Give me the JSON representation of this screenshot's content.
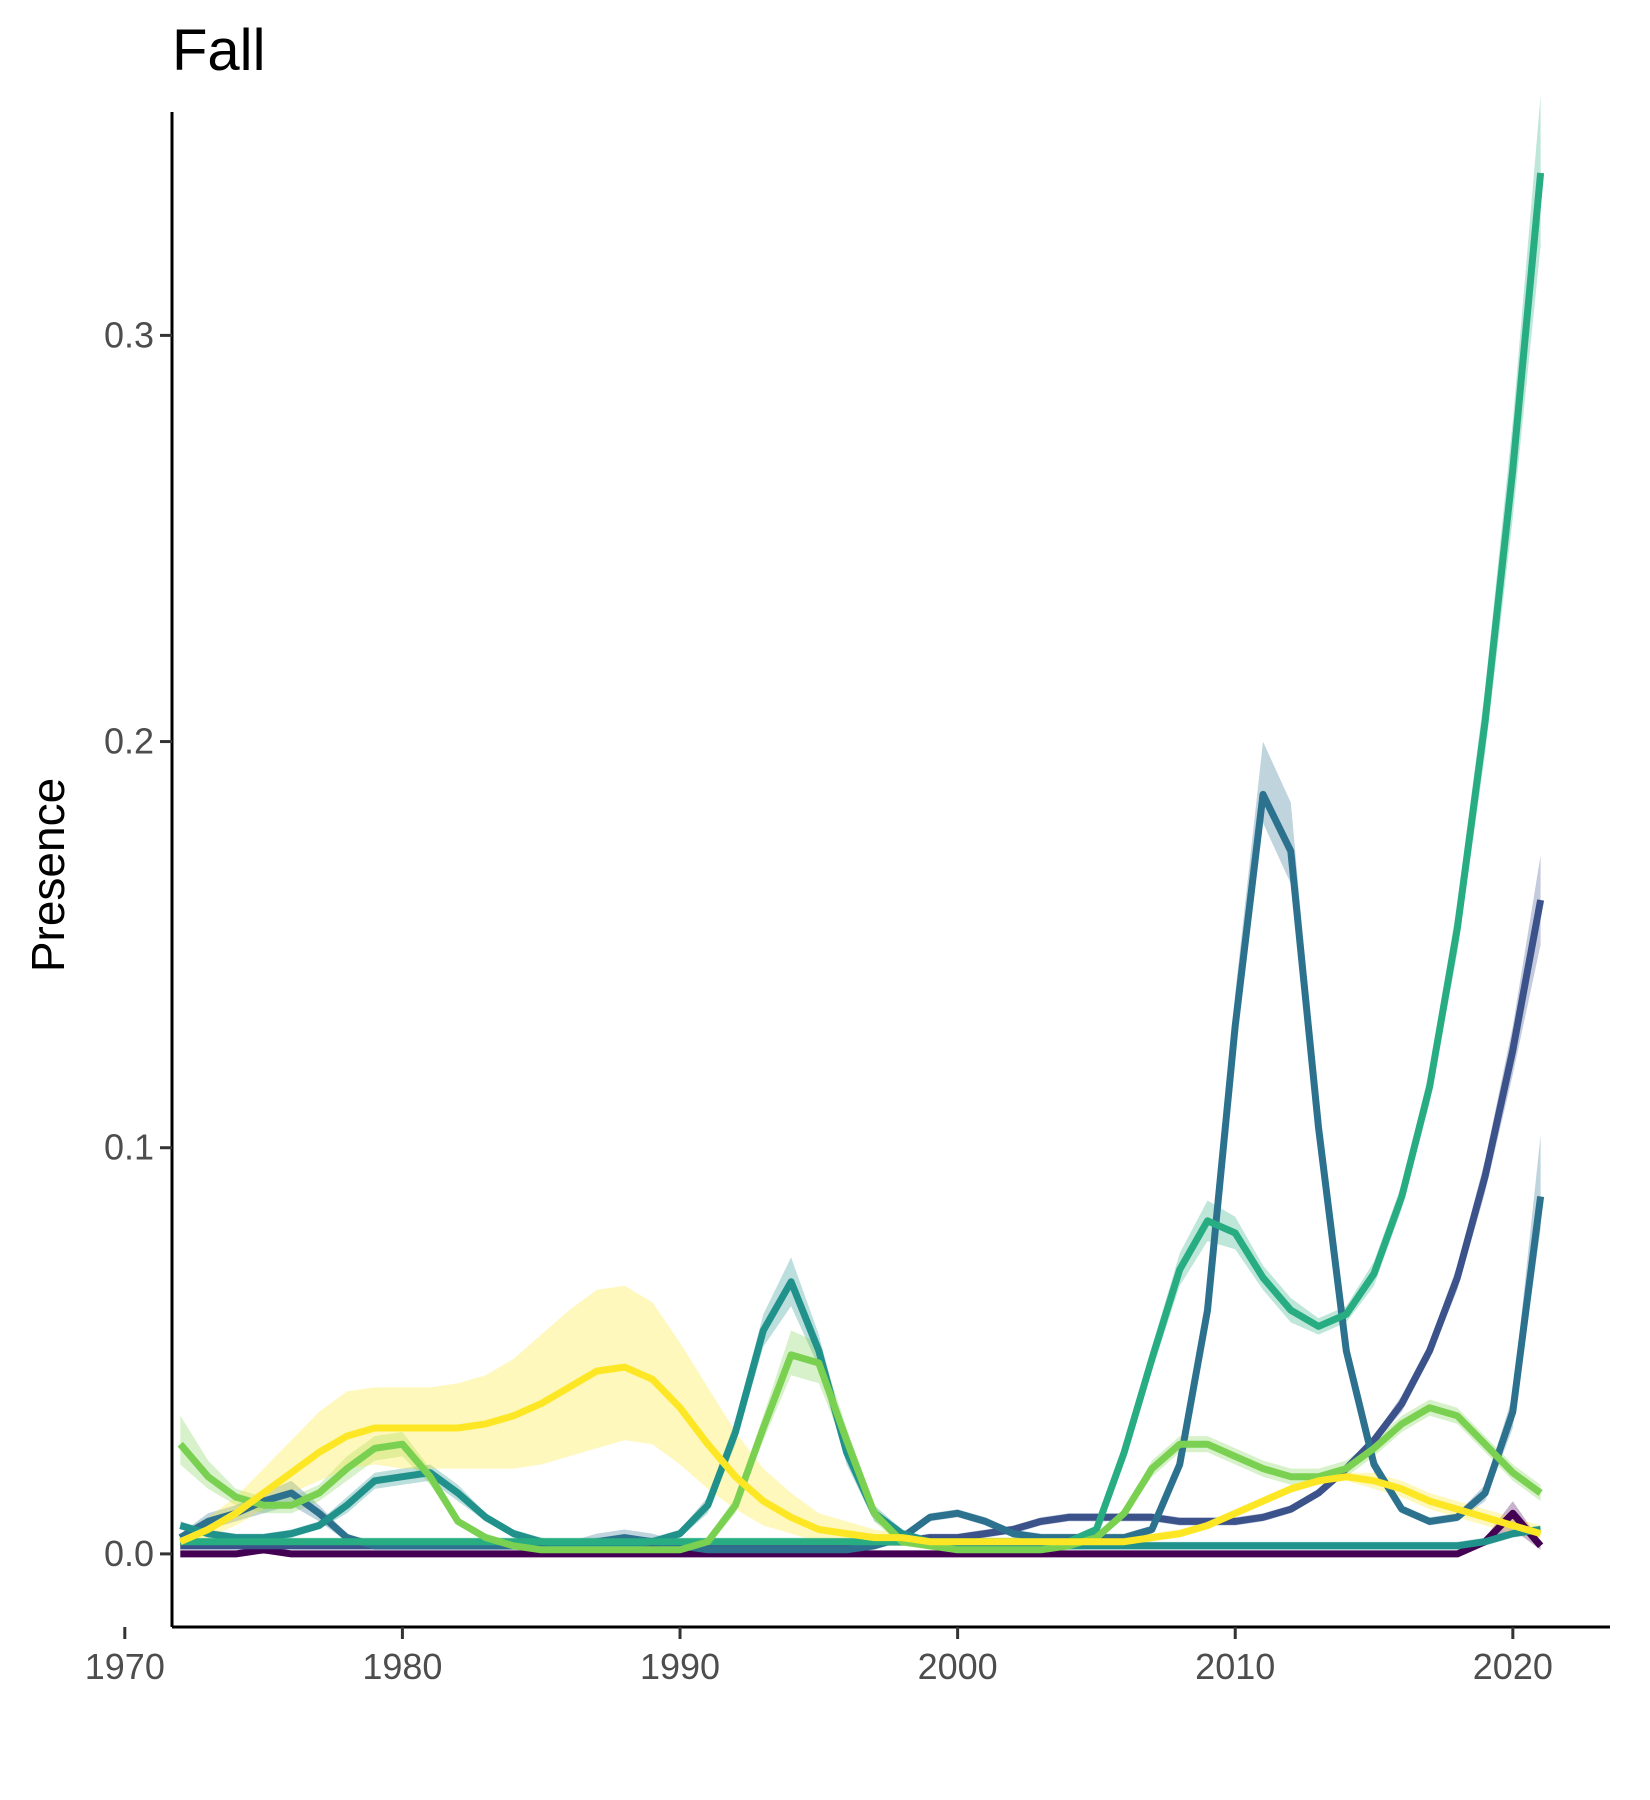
{
  "chart_data": {
    "type": "line",
    "title": "Fall",
    "xlabel": "",
    "ylabel": "Presence",
    "xlim": [
      1971.7,
      2023.5
    ],
    "ylim": [
      -0.018,
      0.355
    ],
    "x_ticks": [
      1970,
      1980,
      1990,
      2000,
      2010,
      2020
    ],
    "x_tick_labels": [
      "1970",
      "1980",
      "1990",
      "2000",
      "2010",
      "2020"
    ],
    "y_ticks": [
      0.0,
      0.1,
      0.2,
      0.3
    ],
    "y_tick_labels": [
      "0.0",
      "0.1",
      "0.2",
      "0.3"
    ],
    "grid": false,
    "legend": "none",
    "x": [
      1972,
      1973,
      1974,
      1975,
      1976,
      1977,
      1978,
      1979,
      1980,
      1981,
      1982,
      1983,
      1984,
      1985,
      1986,
      1987,
      1988,
      1989,
      1990,
      1991,
      1992,
      1993,
      1994,
      1995,
      1996,
      1997,
      1998,
      1999,
      2000,
      2001,
      2002,
      2003,
      2004,
      2005,
      2006,
      2007,
      2008,
      2009,
      2010,
      2011,
      2012,
      2013,
      2014,
      2015,
      2016,
      2017,
      2018,
      2019,
      2020,
      2021
    ],
    "series": [
      {
        "color": "#440154",
        "values": [
          0,
          0,
          0,
          0.001,
          0,
          0,
          0,
          0,
          0,
          0,
          0,
          0,
          0,
          0,
          0,
          0,
          0,
          0,
          0,
          0,
          0,
          0,
          0,
          0,
          0,
          0,
          0,
          0,
          0,
          0,
          0,
          0,
          0,
          0,
          0,
          0,
          0,
          0,
          0,
          0,
          0,
          0,
          0,
          0,
          0,
          0,
          0,
          0.003,
          0.01,
          0.002
        ],
        "lower": [
          0,
          0,
          0,
          0,
          0,
          0,
          0,
          0,
          0,
          0,
          0,
          0,
          0,
          0,
          0,
          0,
          0,
          0,
          0,
          0,
          0,
          0,
          0,
          0,
          0,
          0,
          0,
          0,
          0,
          0,
          0,
          0,
          0,
          0,
          0,
          0,
          0,
          0,
          0,
          0,
          0,
          0,
          0,
          0,
          0,
          0,
          0,
          0.002,
          0.006,
          0.001
        ],
        "upper": [
          0,
          0,
          0,
          0.001,
          0,
          0,
          0,
          0,
          0,
          0,
          0,
          0,
          0,
          0,
          0,
          0,
          0,
          0,
          0,
          0,
          0,
          0,
          0,
          0,
          0,
          0,
          0,
          0,
          0,
          0,
          0,
          0,
          0,
          0,
          0,
          0,
          0,
          0,
          0,
          0,
          0,
          0,
          0,
          0,
          0,
          0,
          0,
          0.004,
          0.013,
          0.003
        ]
      },
      {
        "color": "#3b528b",
        "values": [
          0.002,
          0.002,
          0.002,
          0.002,
          0.002,
          0.002,
          0.002,
          0.002,
          0.002,
          0.002,
          0.002,
          0.002,
          0.002,
          0.002,
          0.002,
          0.002,
          0.002,
          0.002,
          0.002,
          0.002,
          0.002,
          0.002,
          0.002,
          0.002,
          0.002,
          0.003,
          0.003,
          0.004,
          0.004,
          0.005,
          0.006,
          0.008,
          0.009,
          0.009,
          0.009,
          0.009,
          0.008,
          0.008,
          0.008,
          0.009,
          0.011,
          0.015,
          0.021,
          0.028,
          0.037,
          0.05,
          0.068,
          0.093,
          0.124,
          0.161
        ],
        "lower": [
          0.001,
          0.001,
          0.001,
          0.001,
          0.001,
          0.001,
          0.001,
          0.001,
          0.001,
          0.001,
          0.001,
          0.001,
          0.001,
          0.001,
          0.001,
          0.001,
          0.001,
          0.001,
          0.001,
          0.001,
          0.001,
          0.001,
          0.001,
          0.001,
          0.001,
          0.002,
          0.002,
          0.003,
          0.003,
          0.004,
          0.005,
          0.007,
          0.008,
          0.008,
          0.008,
          0.008,
          0.007,
          0.007,
          0.007,
          0.008,
          0.01,
          0.014,
          0.02,
          0.027,
          0.035,
          0.048,
          0.065,
          0.089,
          0.118,
          0.15
        ],
        "upper": [
          0.003,
          0.003,
          0.003,
          0.003,
          0.003,
          0.003,
          0.003,
          0.003,
          0.003,
          0.003,
          0.003,
          0.003,
          0.003,
          0.003,
          0.003,
          0.003,
          0.003,
          0.003,
          0.003,
          0.003,
          0.003,
          0.003,
          0.003,
          0.003,
          0.003,
          0.004,
          0.004,
          0.005,
          0.005,
          0.006,
          0.007,
          0.009,
          0.01,
          0.01,
          0.01,
          0.01,
          0.009,
          0.009,
          0.009,
          0.01,
          0.012,
          0.016,
          0.022,
          0.029,
          0.039,
          0.052,
          0.071,
          0.097,
          0.13,
          0.172
        ]
      },
      {
        "color": "#2c728e",
        "values": [
          0.004,
          0.008,
          0.01,
          0.013,
          0.015,
          0.01,
          0.004,
          0.002,
          0.002,
          0.002,
          0.002,
          0.002,
          0.002,
          0.002,
          0.002,
          0.003,
          0.004,
          0.003,
          0.002,
          0.001,
          0.001,
          0.001,
          0.001,
          0.001,
          0.001,
          0.002,
          0.004,
          0.009,
          0.01,
          0.008,
          0.005,
          0.004,
          0.004,
          0.004,
          0.004,
          0.006,
          0.022,
          0.06,
          0.13,
          0.187,
          0.173,
          0.105,
          0.05,
          0.022,
          0.011,
          0.008,
          0.009,
          0.015,
          0.035,
          0.088
        ],
        "lower": [
          0.003,
          0.006,
          0.008,
          0.01,
          0.012,
          0.008,
          0.003,
          0.001,
          0.001,
          0.001,
          0.001,
          0.001,
          0.001,
          0.001,
          0.001,
          0.002,
          0.002,
          0.002,
          0.001,
          0,
          0,
          0,
          0,
          0,
          0,
          0.001,
          0.003,
          0.008,
          0.009,
          0.007,
          0.004,
          0.003,
          0.003,
          0.003,
          0.003,
          0.005,
          0.02,
          0.056,
          0.123,
          0.18,
          0.165,
          0.1,
          0.047,
          0.02,
          0.01,
          0.007,
          0.008,
          0.013,
          0.031,
          0.08
        ],
        "upper": [
          0.005,
          0.01,
          0.012,
          0.015,
          0.018,
          0.012,
          0.005,
          0.003,
          0.003,
          0.003,
          0.003,
          0.003,
          0.003,
          0.003,
          0.003,
          0.005,
          0.006,
          0.005,
          0.003,
          0.002,
          0.002,
          0.002,
          0.002,
          0.002,
          0.002,
          0.003,
          0.005,
          0.01,
          0.011,
          0.009,
          0.006,
          0.005,
          0.005,
          0.005,
          0.005,
          0.007,
          0.024,
          0.064,
          0.138,
          0.2,
          0.185,
          0.11,
          0.053,
          0.024,
          0.012,
          0.009,
          0.01,
          0.017,
          0.039,
          0.103
        ]
      },
      {
        "color": "#21918c",
        "values": [
          0.007,
          0.005,
          0.004,
          0.004,
          0.005,
          0.007,
          0.012,
          0.018,
          0.019,
          0.02,
          0.015,
          0.009,
          0.005,
          0.003,
          0.002,
          0.002,
          0.002,
          0.003,
          0.005,
          0.012,
          0.03,
          0.055,
          0.067,
          0.05,
          0.025,
          0.01,
          0.005,
          0.003,
          0.002,
          0.002,
          0.002,
          0.002,
          0.002,
          0.002,
          0.002,
          0.002,
          0.002,
          0.002,
          0.002,
          0.002,
          0.002,
          0.002,
          0.002,
          0.002,
          0.002,
          0.002,
          0.002,
          0.003,
          0.005,
          0.006
        ],
        "lower": [
          0.006,
          0.004,
          0.003,
          0.003,
          0.004,
          0.006,
          0.01,
          0.016,
          0.017,
          0.018,
          0.013,
          0.008,
          0.004,
          0.002,
          0.001,
          0.001,
          0.001,
          0.002,
          0.004,
          0.01,
          0.027,
          0.051,
          0.061,
          0.046,
          0.022,
          0.008,
          0.004,
          0.002,
          0.001,
          0.001,
          0.001,
          0.001,
          0.001,
          0.001,
          0.001,
          0.001,
          0.001,
          0.001,
          0.001,
          0.001,
          0.001,
          0.001,
          0.001,
          0.001,
          0.001,
          0.001,
          0.001,
          0.002,
          0.004,
          0.005
        ],
        "upper": [
          0.008,
          0.006,
          0.005,
          0.005,
          0.006,
          0.008,
          0.014,
          0.02,
          0.021,
          0.022,
          0.017,
          0.01,
          0.006,
          0.004,
          0.003,
          0.003,
          0.003,
          0.004,
          0.006,
          0.014,
          0.033,
          0.059,
          0.073,
          0.054,
          0.028,
          0.012,
          0.006,
          0.004,
          0.003,
          0.003,
          0.003,
          0.003,
          0.003,
          0.003,
          0.003,
          0.003,
          0.003,
          0.003,
          0.003,
          0.003,
          0.003,
          0.003,
          0.003,
          0.003,
          0.003,
          0.003,
          0.003,
          0.004,
          0.006,
          0.007
        ]
      },
      {
        "color": "#27ad81",
        "values": [
          0.003,
          0.003,
          0.003,
          0.003,
          0.003,
          0.003,
          0.003,
          0.003,
          0.003,
          0.003,
          0.003,
          0.003,
          0.003,
          0.003,
          0.003,
          0.003,
          0.003,
          0.003,
          0.003,
          0.003,
          0.003,
          0.003,
          0.003,
          0.003,
          0.003,
          0.003,
          0.003,
          0.003,
          0.003,
          0.003,
          0.003,
          0.003,
          0.003,
          0.006,
          0.025,
          0.048,
          0.07,
          0.082,
          0.079,
          0.068,
          0.06,
          0.056,
          0.059,
          0.069,
          0.088,
          0.115,
          0.154,
          0.205,
          0.267,
          0.34
        ],
        "lower": [
          0.002,
          0.002,
          0.002,
          0.002,
          0.002,
          0.002,
          0.002,
          0.002,
          0.002,
          0.002,
          0.002,
          0.002,
          0.002,
          0.002,
          0.002,
          0.002,
          0.002,
          0.002,
          0.002,
          0.002,
          0.002,
          0.002,
          0.002,
          0.002,
          0.002,
          0.002,
          0.002,
          0.002,
          0.002,
          0.002,
          0.002,
          0.002,
          0.002,
          0.005,
          0.023,
          0.045,
          0.066,
          0.077,
          0.075,
          0.065,
          0.057,
          0.054,
          0.057,
          0.066,
          0.085,
          0.111,
          0.148,
          0.197,
          0.255,
          0.322
        ],
        "upper": [
          0.004,
          0.004,
          0.004,
          0.004,
          0.004,
          0.004,
          0.004,
          0.004,
          0.004,
          0.004,
          0.004,
          0.004,
          0.004,
          0.004,
          0.004,
          0.004,
          0.004,
          0.004,
          0.004,
          0.004,
          0.004,
          0.004,
          0.004,
          0.004,
          0.004,
          0.004,
          0.004,
          0.004,
          0.004,
          0.004,
          0.004,
          0.004,
          0.004,
          0.007,
          0.027,
          0.051,
          0.074,
          0.087,
          0.083,
          0.071,
          0.063,
          0.058,
          0.061,
          0.072,
          0.091,
          0.119,
          0.16,
          0.213,
          0.279,
          0.359
        ]
      },
      {
        "color": "#7ad151",
        "values": [
          0.027,
          0.019,
          0.014,
          0.012,
          0.012,
          0.015,
          0.021,
          0.026,
          0.027,
          0.019,
          0.008,
          0.004,
          0.002,
          0.001,
          0.001,
          0.001,
          0.001,
          0.001,
          0.001,
          0.003,
          0.012,
          0.031,
          0.049,
          0.047,
          0.028,
          0.01,
          0.003,
          0.002,
          0.001,
          0.001,
          0.001,
          0.001,
          0.002,
          0.004,
          0.01,
          0.021,
          0.027,
          0.027,
          0.024,
          0.021,
          0.019,
          0.019,
          0.021,
          0.026,
          0.032,
          0.036,
          0.034,
          0.027,
          0.02,
          0.015
        ],
        "lower": [
          0.022,
          0.016,
          0.012,
          0.01,
          0.01,
          0.013,
          0.018,
          0.023,
          0.024,
          0.017,
          0.007,
          0.003,
          0.001,
          0,
          0,
          0,
          0,
          0,
          0,
          0.002,
          0.01,
          0.028,
          0.044,
          0.042,
          0.025,
          0.008,
          0.002,
          0.001,
          0,
          0,
          0,
          0,
          0.001,
          0.003,
          0.009,
          0.019,
          0.025,
          0.025,
          0.022,
          0.019,
          0.017,
          0.017,
          0.019,
          0.024,
          0.03,
          0.034,
          0.032,
          0.025,
          0.018,
          0.013
        ],
        "upper": [
          0.034,
          0.023,
          0.016,
          0.014,
          0.014,
          0.017,
          0.024,
          0.029,
          0.03,
          0.021,
          0.009,
          0.005,
          0.003,
          0.002,
          0.002,
          0.002,
          0.002,
          0.002,
          0.002,
          0.004,
          0.014,
          0.034,
          0.055,
          0.052,
          0.031,
          0.012,
          0.004,
          0.003,
          0.002,
          0.002,
          0.002,
          0.002,
          0.003,
          0.005,
          0.011,
          0.023,
          0.029,
          0.029,
          0.026,
          0.023,
          0.021,
          0.021,
          0.023,
          0.028,
          0.034,
          0.038,
          0.036,
          0.029,
          0.022,
          0.017
        ]
      },
      {
        "color": "#fde725",
        "values": [
          0.003,
          0.006,
          0.01,
          0.015,
          0.02,
          0.025,
          0.029,
          0.031,
          0.031,
          0.031,
          0.031,
          0.032,
          0.034,
          0.037,
          0.041,
          0.045,
          0.046,
          0.043,
          0.036,
          0.027,
          0.019,
          0.013,
          0.009,
          0.006,
          0.005,
          0.004,
          0.004,
          0.003,
          0.003,
          0.003,
          0.003,
          0.003,
          0.003,
          0.003,
          0.003,
          0.004,
          0.005,
          0.007,
          0.01,
          0.013,
          0.016,
          0.018,
          0.019,
          0.018,
          0.016,
          0.013,
          0.011,
          0.009,
          0.007,
          0.005
        ],
        "lower": [
          0.002,
          0.004,
          0.007,
          0.011,
          0.015,
          0.018,
          0.021,
          0.022,
          0.021,
          0.021,
          0.021,
          0.021,
          0.021,
          0.022,
          0.024,
          0.026,
          0.028,
          0.027,
          0.022,
          0.016,
          0.011,
          0.007,
          0.005,
          0.003,
          0.003,
          0.002,
          0.002,
          0.002,
          0.002,
          0.002,
          0.002,
          0.002,
          0.002,
          0.002,
          0.002,
          0.003,
          0.004,
          0.006,
          0.009,
          0.012,
          0.015,
          0.017,
          0.018,
          0.016,
          0.014,
          0.011,
          0.009,
          0.007,
          0.005,
          0.004
        ],
        "upper": [
          0.005,
          0.009,
          0.014,
          0.021,
          0.028,
          0.035,
          0.04,
          0.041,
          0.041,
          0.041,
          0.042,
          0.044,
          0.048,
          0.054,
          0.06,
          0.065,
          0.066,
          0.062,
          0.052,
          0.041,
          0.03,
          0.021,
          0.015,
          0.01,
          0.008,
          0.006,
          0.005,
          0.004,
          0.004,
          0.004,
          0.004,
          0.004,
          0.004,
          0.004,
          0.004,
          0.005,
          0.006,
          0.008,
          0.011,
          0.014,
          0.017,
          0.019,
          0.02,
          0.02,
          0.018,
          0.015,
          0.013,
          0.011,
          0.009,
          0.007
        ]
      }
    ]
  }
}
